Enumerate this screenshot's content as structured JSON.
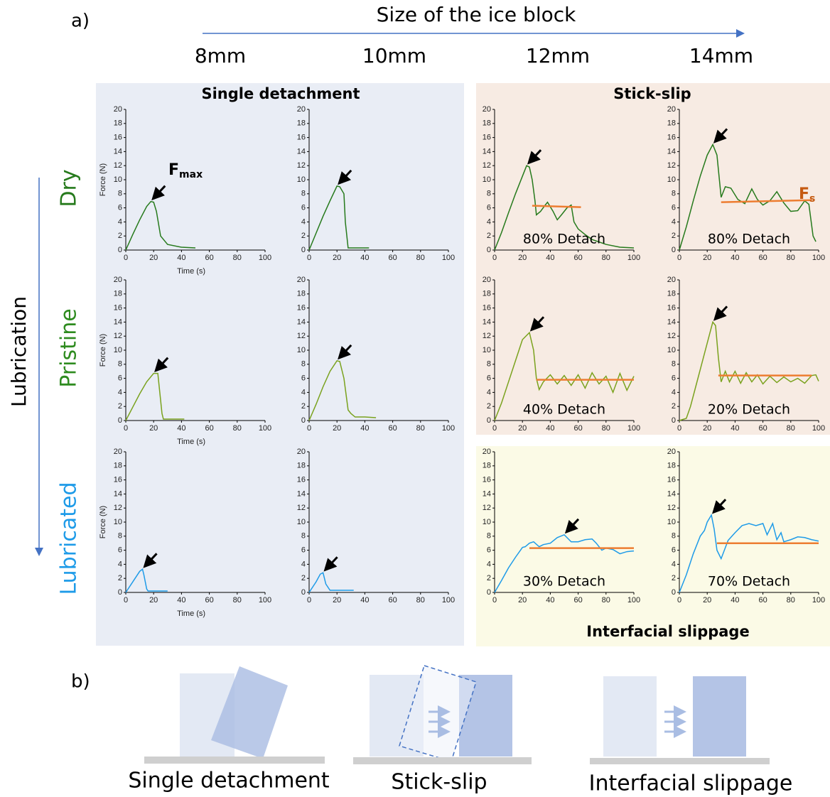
{
  "panel_a": {
    "label": "a)",
    "size_title": "Size of the ice block",
    "sizes": [
      "8mm",
      "10mm",
      "12mm",
      "14mm"
    ],
    "lubrication_title": "Lubrication",
    "conditions": [
      {
        "name": "Dry",
        "color": "#267a1c"
      },
      {
        "name": "Pristine",
        "color": "#2e8b1f"
      },
      {
        "name": "Lubricated",
        "color": "#1e9be8"
      }
    ],
    "regions": [
      "Single detachment",
      "Stick-slip",
      "Interfacial slippage"
    ]
  },
  "chart_data": [
    {
      "type": "line",
      "color": "#267a1c",
      "y_label": "Force (N)",
      "x_label": "Time (s)",
      "annotation_main": "F",
      "annotation_sub": "max",
      "x": [
        0,
        5,
        10,
        15,
        18,
        20,
        22,
        25,
        30,
        40,
        50
      ],
      "values": [
        0,
        2.2,
        4.3,
        6.2,
        6.9,
        6.8,
        5.5,
        2,
        0.8,
        0.4,
        0.3
      ],
      "xlim": [
        0,
        100
      ],
      "ylim": [
        0,
        20
      ],
      "xticks": [
        0,
        20,
        40,
        60,
        80,
        100
      ],
      "yticks": [
        0,
        2,
        4,
        6,
        8,
        10,
        12,
        14,
        16,
        18,
        20
      ]
    },
    {
      "type": "line",
      "color": "#267a1c",
      "x": [
        0,
        5,
        10,
        15,
        20,
        22,
        25,
        26,
        28,
        30,
        43
      ],
      "values": [
        0,
        2.4,
        4.8,
        7,
        9.1,
        9,
        8,
        4,
        0.3,
        0.3,
        0.3
      ],
      "xlim": [
        0,
        100
      ],
      "ylim": [
        0,
        20
      ],
      "xticks": [
        0,
        20,
        40,
        60,
        80,
        100
      ],
      "yticks": [
        0,
        2,
        4,
        6,
        8,
        10,
        12,
        14,
        16,
        18,
        20
      ]
    },
    {
      "type": "line",
      "color": "#267a1c",
      "annotation": "80% Detach",
      "x": [
        0,
        5,
        10,
        15,
        20,
        23,
        25,
        27,
        29,
        30,
        33,
        36,
        38,
        42,
        45,
        48,
        52,
        55,
        57,
        60,
        65,
        70,
        80,
        90,
        100
      ],
      "values": [
        0,
        2.5,
        5.3,
        8,
        10.5,
        12,
        11.8,
        10,
        7,
        5,
        5.5,
        6.3,
        6.8,
        5.5,
        4.3,
        5,
        6,
        6.4,
        4,
        3,
        2.2,
        1.5,
        0.8,
        0.4,
        0.3
      ],
      "fs_line": {
        "color": "#ed7d31",
        "x": [
          27,
          62
        ],
        "values": [
          6.3,
          6.1
        ]
      },
      "xlim": [
        0,
        100
      ],
      "ylim": [
        0,
        20
      ],
      "xticks": [
        0,
        20,
        40,
        60,
        80,
        100
      ],
      "yticks": [
        0,
        2,
        4,
        6,
        8,
        10,
        12,
        14,
        16,
        18,
        20
      ]
    },
    {
      "type": "line",
      "color": "#267a1c",
      "annotation": "80% Detach",
      "annotation_main": "F",
      "annotation_sub": "s",
      "x": [
        0,
        5,
        10,
        15,
        20,
        24,
        27,
        30,
        33,
        37,
        42,
        47,
        52,
        56,
        60,
        65,
        70,
        75,
        80,
        85,
        90,
        93,
        96,
        98
      ],
      "values": [
        0,
        3.3,
        7,
        10.5,
        13.5,
        15,
        13.5,
        7.5,
        9,
        8.8,
        7.2,
        6.6,
        8.7,
        7.2,
        6.4,
        7,
        8.3,
        6.7,
        5.5,
        5.6,
        7,
        6.5,
        2,
        1.2
      ],
      "fs_line": {
        "color": "#ed7d31",
        "x": [
          30,
          95
        ],
        "values": [
          6.8,
          7.1
        ]
      },
      "xlim": [
        0,
        100
      ],
      "ylim": [
        0,
        20
      ],
      "xticks": [
        0,
        20,
        40,
        60,
        80,
        100
      ],
      "yticks": [
        0,
        2,
        4,
        6,
        8,
        10,
        12,
        14,
        16,
        18,
        20
      ]
    },
    {
      "type": "line",
      "color": "#7aa21e",
      "y_label": "Force (N)",
      "x_label": "Time (s)",
      "x": [
        0,
        5,
        10,
        15,
        20,
        23,
        26,
        27,
        42
      ],
      "values": [
        0,
        1.9,
        3.8,
        5.5,
        6.7,
        6.7,
        1,
        0.2,
        0.2
      ],
      "xlim": [
        0,
        100
      ],
      "ylim": [
        0,
        20
      ],
      "xticks": [
        0,
        20,
        40,
        60,
        80,
        100
      ],
      "yticks": [
        0,
        2,
        4,
        6,
        8,
        10,
        12,
        14,
        16,
        18,
        20
      ]
    },
    {
      "type": "line",
      "color": "#7aa21e",
      "x": [
        0,
        5,
        10,
        15,
        20,
        22,
        25,
        28,
        30,
        33,
        40,
        48
      ],
      "values": [
        0,
        2.3,
        4.8,
        7,
        8.5,
        8.4,
        6,
        1.5,
        1,
        0.5,
        0.5,
        0.4
      ],
      "xlim": [
        0,
        100
      ],
      "ylim": [
        0,
        20
      ],
      "xticks": [
        0,
        20,
        40,
        60,
        80,
        100
      ],
      "yticks": [
        0,
        2,
        4,
        6,
        8,
        10,
        12,
        14,
        16,
        18,
        20
      ]
    },
    {
      "type": "line",
      "color": "#7aa21e",
      "annotation": "40% Detach",
      "x": [
        0,
        5,
        10,
        15,
        20,
        25,
        28,
        30,
        32,
        35,
        40,
        45,
        50,
        55,
        60,
        65,
        70,
        75,
        80,
        85,
        90,
        95,
        100
      ],
      "values": [
        0,
        2.5,
        5.5,
        8.5,
        11.5,
        12.5,
        10,
        6,
        4.4,
        5.5,
        6.5,
        5.2,
        6.4,
        5,
        6.5,
        4.6,
        6.8,
        5.2,
        6.3,
        4,
        6.7,
        4.3,
        6.3
      ],
      "fs_line": {
        "color": "#ed7d31",
        "x": [
          30,
          100
        ],
        "values": [
          5.8,
          5.8
        ]
      },
      "xlim": [
        0,
        100
      ],
      "ylim": [
        0,
        20
      ],
      "xticks": [
        0,
        20,
        40,
        60,
        80,
        100
      ],
      "yticks": [
        0,
        2,
        4,
        6,
        8,
        10,
        12,
        14,
        16,
        18,
        20
      ]
    },
    {
      "type": "line",
      "color": "#7aa21e",
      "annotation": "20% Detach",
      "x": [
        0,
        5,
        8,
        12,
        16,
        20,
        24,
        26,
        28,
        30,
        33,
        36,
        40,
        44,
        48,
        52,
        56,
        60,
        65,
        70,
        75,
        80,
        85,
        90,
        95,
        98,
        100
      ],
      "values": [
        0,
        0.3,
        2,
        5,
        8,
        11,
        14,
        13.5,
        9,
        5.5,
        7,
        5.5,
        7,
        5.3,
        6.8,
        5.5,
        6.5,
        5.2,
        6.3,
        5.4,
        6.2,
        5.5,
        6,
        5.3,
        6.4,
        6.5,
        5.6
      ],
      "fs_line": {
        "color": "#ed7d31",
        "x": [
          28,
          95
        ],
        "values": [
          6.4,
          6.4
        ]
      },
      "xlim": [
        0,
        100
      ],
      "ylim": [
        0,
        20
      ],
      "xticks": [
        0,
        20,
        40,
        60,
        80,
        100
      ],
      "yticks": [
        0,
        2,
        4,
        6,
        8,
        10,
        12,
        14,
        16,
        18,
        20
      ]
    },
    {
      "type": "line",
      "color": "#1e9be8",
      "y_label": "Force (N)",
      "x_label": "Time (s)",
      "x": [
        0,
        5,
        10,
        12,
        13,
        15,
        16,
        30
      ],
      "values": [
        0,
        1.5,
        3,
        3.3,
        2.5,
        0.5,
        0.2,
        0.2
      ],
      "xlim": [
        0,
        100
      ],
      "ylim": [
        0,
        20
      ],
      "xticks": [
        0,
        20,
        40,
        60,
        80,
        100
      ],
      "yticks": [
        0,
        2,
        4,
        6,
        8,
        10,
        12,
        14,
        16,
        18,
        20
      ]
    },
    {
      "type": "line",
      "color": "#1e9be8",
      "x": [
        0,
        5,
        8,
        10,
        12,
        15,
        20,
        32
      ],
      "values": [
        0,
        1.5,
        2.6,
        2.8,
        1.2,
        0.3,
        0.3,
        0.3
      ],
      "xlim": [
        0,
        100
      ],
      "ylim": [
        0,
        20
      ],
      "xticks": [
        0,
        20,
        40,
        60,
        80,
        100
      ],
      "yticks": [
        0,
        2,
        4,
        6,
        8,
        10,
        12,
        14,
        16,
        18,
        20
      ]
    },
    {
      "type": "line",
      "color": "#1e9be8",
      "annotation": "30% Detach",
      "x": [
        0,
        5,
        10,
        15,
        20,
        22,
        25,
        28,
        32,
        35,
        40,
        45,
        50,
        55,
        60,
        65,
        70,
        73,
        77,
        80,
        85,
        90,
        95,
        100
      ],
      "values": [
        0,
        1.7,
        3.5,
        5,
        6.4,
        6.5,
        7,
        7.2,
        6.5,
        6.8,
        7,
        7.8,
        8.2,
        7.2,
        7.2,
        7.5,
        7.6,
        7,
        6,
        6.3,
        6.1,
        5.5,
        5.8,
        5.9
      ],
      "fs_line": {
        "color": "#ed7d31",
        "x": [
          25,
          100
        ],
        "values": [
          6.3,
          6.3
        ]
      },
      "xlim": [
        0,
        100
      ],
      "ylim": [
        0,
        20
      ],
      "xticks": [
        0,
        20,
        40,
        60,
        80,
        100
      ],
      "yticks": [
        0,
        2,
        4,
        6,
        8,
        10,
        12,
        14,
        16,
        18,
        20
      ]
    },
    {
      "type": "line",
      "color": "#1e9be8",
      "annotation": "70% Detach",
      "x": [
        0,
        5,
        10,
        15,
        18,
        20,
        23,
        25,
        27,
        30,
        35,
        40,
        45,
        50,
        55,
        60,
        63,
        67,
        70,
        73,
        75,
        80,
        85,
        90,
        95,
        100
      ],
      "values": [
        0,
        2.5,
        5.5,
        8,
        8.8,
        10,
        11,
        9,
        6,
        4.8,
        7.4,
        8.5,
        9.5,
        9.8,
        9.5,
        9.8,
        8.2,
        9.8,
        7.5,
        8.5,
        7.2,
        7.5,
        7.9,
        7.8,
        7.5,
        7.3
      ],
      "fs_line": {
        "color": "#ed7d31",
        "x": [
          27,
          100
        ],
        "values": [
          7,
          7
        ]
      },
      "xlim": [
        0,
        100
      ],
      "ylim": [
        0,
        20
      ],
      "xticks": [
        0,
        20,
        40,
        60,
        80,
        100
      ],
      "yticks": [
        0,
        2,
        4,
        6,
        8,
        10,
        12,
        14,
        16,
        18,
        20
      ]
    }
  ],
  "panel_b": {
    "label": "b)",
    "captions": [
      "Single detachment",
      "Stick-slip",
      "Interfacial slippage"
    ]
  }
}
